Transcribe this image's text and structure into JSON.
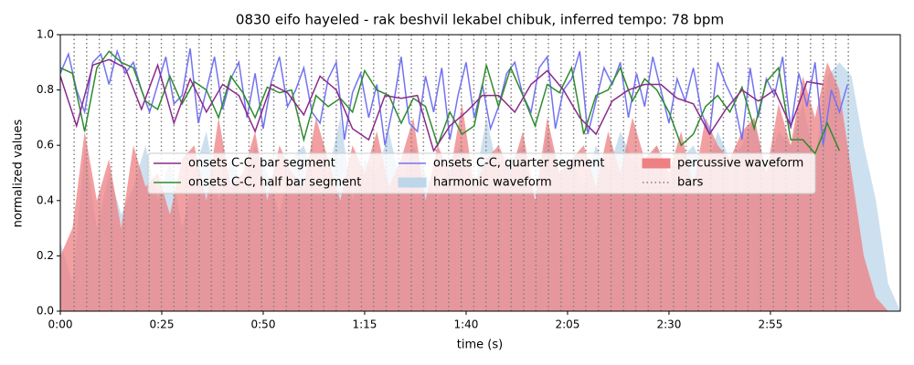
{
  "chart_data": {
    "type": "line",
    "title": "0830 eifo hayeled - rak beshvil lekabel chibuk, inferred tempo: 78 bpm",
    "xlabel": "time (s)",
    "ylabel": "normalized values",
    "xlim": [
      0,
      207
    ],
    "ylim": [
      0,
      1
    ],
    "xticks": [
      {
        "value": 0,
        "label": "0:00"
      },
      {
        "value": 25,
        "label": "0:25"
      },
      {
        "value": 50,
        "label": "0:50"
      },
      {
        "value": 75,
        "label": "1:15"
      },
      {
        "value": 100,
        "label": "1:40"
      },
      {
        "value": 125,
        "label": "2:05"
      },
      {
        "value": 150,
        "label": "2:30"
      },
      {
        "value": 175,
        "label": "2:55"
      }
    ],
    "yticks": [
      {
        "value": 0,
        "label": "0.0"
      },
      0.2,
      0.4,
      0.6,
      0.8,
      {
        "value": 1,
        "label": "1.0"
      }
    ],
    "legend": "center",
    "series": [
      {
        "name": "onsets C-C, bar segment",
        "kind": "line",
        "color": "#8b2a8b",
        "x": [
          0,
          4,
          8,
          12,
          16,
          20,
          24,
          28,
          32,
          36,
          40,
          44,
          48,
          52,
          56,
          60,
          64,
          68,
          72,
          76,
          80,
          84,
          88,
          92,
          96,
          100,
          104,
          108,
          112,
          116,
          120,
          124,
          128,
          132,
          136,
          140,
          144,
          148,
          152,
          156,
          160,
          164,
          168,
          172,
          176,
          180,
          184,
          188
        ],
        "values": [
          0.85,
          0.67,
          0.89,
          0.91,
          0.88,
          0.73,
          0.89,
          0.68,
          0.84,
          0.72,
          0.82,
          0.78,
          0.65,
          0.82,
          0.79,
          0.71,
          0.85,
          0.8,
          0.66,
          0.62,
          0.78,
          0.77,
          0.78,
          0.58,
          0.67,
          0.72,
          0.78,
          0.78,
          0.72,
          0.82,
          0.87,
          0.8,
          0.7,
          0.64,
          0.76,
          0.8,
          0.82,
          0.82,
          0.77,
          0.75,
          0.64,
          0.73,
          0.8,
          0.76,
          0.8,
          0.67,
          0.83,
          0.82
        ]
      },
      {
        "name": "onsets C-C, half bar segment",
        "kind": "line",
        "color": "#2e8b2e",
        "x": [
          0,
          3,
          6,
          9,
          12,
          15,
          18,
          21,
          24,
          27,
          30,
          33,
          36,
          39,
          42,
          45,
          48,
          51,
          54,
          57,
          60,
          63,
          66,
          69,
          72,
          75,
          78,
          81,
          84,
          87,
          90,
          93,
          96,
          99,
          102,
          105,
          108,
          111,
          114,
          117,
          120,
          123,
          126,
          129,
          132,
          135,
          138,
          141,
          144,
          147,
          150,
          153,
          156,
          159,
          162,
          165,
          168,
          171,
          174,
          177,
          180,
          183,
          186,
          189,
          192
        ],
        "values": [
          0.88,
          0.86,
          0.65,
          0.88,
          0.94,
          0.9,
          0.88,
          0.76,
          0.73,
          0.85,
          0.75,
          0.83,
          0.8,
          0.7,
          0.85,
          0.79,
          0.7,
          0.81,
          0.79,
          0.8,
          0.62,
          0.78,
          0.74,
          0.77,
          0.72,
          0.87,
          0.8,
          0.78,
          0.68,
          0.77,
          0.74,
          0.6,
          0.72,
          0.64,
          0.67,
          0.89,
          0.74,
          0.88,
          0.78,
          0.67,
          0.82,
          0.79,
          0.88,
          0.64,
          0.78,
          0.8,
          0.88,
          0.76,
          0.84,
          0.8,
          0.72,
          0.6,
          0.64,
          0.74,
          0.78,
          0.72,
          0.81,
          0.66,
          0.83,
          0.88,
          0.62,
          0.62,
          0.57,
          0.68,
          0.58
        ]
      },
      {
        "name": "onsets C-C, quarter segment",
        "kind": "line",
        "color": "#7373f0",
        "x": [
          0,
          2,
          4,
          6,
          8,
          10,
          12,
          14,
          16,
          18,
          20,
          22,
          24,
          26,
          28,
          30,
          32,
          34,
          36,
          38,
          40,
          42,
          44,
          46,
          48,
          50,
          52,
          54,
          56,
          58,
          60,
          62,
          64,
          66,
          68,
          70,
          72,
          74,
          76,
          78,
          80,
          82,
          84,
          86,
          88,
          90,
          92,
          94,
          96,
          98,
          100,
          102,
          104,
          106,
          108,
          110,
          112,
          114,
          116,
          118,
          120,
          122,
          124,
          126,
          128,
          130,
          132,
          134,
          136,
          138,
          140,
          142,
          144,
          146,
          148,
          150,
          152,
          154,
          156,
          158,
          160,
          162,
          164,
          166,
          168,
          170,
          172,
          174,
          176,
          178,
          180,
          182,
          184,
          186,
          188,
          190,
          192,
          194
        ],
        "values": [
          0.86,
          0.93,
          0.8,
          0.72,
          0.9,
          0.93,
          0.82,
          0.94,
          0.86,
          0.9,
          0.8,
          0.72,
          0.82,
          0.92,
          0.75,
          0.78,
          0.95,
          0.68,
          0.8,
          0.92,
          0.73,
          0.84,
          0.9,
          0.7,
          0.86,
          0.66,
          0.83,
          0.92,
          0.74,
          0.8,
          0.88,
          0.72,
          0.68,
          0.84,
          0.9,
          0.62,
          0.79,
          0.86,
          0.7,
          0.82,
          0.6,
          0.74,
          0.92,
          0.68,
          0.65,
          0.85,
          0.72,
          0.88,
          0.62,
          0.78,
          0.9,
          0.7,
          0.82,
          0.66,
          0.74,
          0.86,
          0.9,
          0.78,
          0.72,
          0.88,
          0.92,
          0.66,
          0.8,
          0.84,
          0.94,
          0.64,
          0.76,
          0.88,
          0.82,
          0.9,
          0.7,
          0.86,
          0.74,
          0.92,
          0.8,
          0.68,
          0.84,
          0.76,
          0.88,
          0.72,
          0.64,
          0.9,
          0.82,
          0.76,
          0.62,
          0.88,
          0.7,
          0.84,
          0.78,
          0.92,
          0.66,
          0.86,
          0.74,
          0.9,
          0.6,
          0.8,
          0.72,
          0.82
        ]
      },
      {
        "name": "harmonic waveform",
        "kind": "area",
        "color": "#bcd6ea",
        "x": [
          0,
          3,
          6,
          9,
          12,
          15,
          18,
          21,
          24,
          27,
          30,
          33,
          36,
          39,
          42,
          45,
          48,
          51,
          54,
          57,
          60,
          63,
          66,
          69,
          72,
          75,
          78,
          81,
          84,
          87,
          90,
          93,
          96,
          99,
          102,
          105,
          108,
          111,
          114,
          117,
          120,
          123,
          126,
          129,
          132,
          135,
          138,
          141,
          144,
          147,
          150,
          153,
          156,
          159,
          162,
          165,
          168,
          171,
          174,
          177,
          180,
          183,
          186,
          189,
          192,
          195,
          198,
          201,
          204,
          207
        ],
        "values": [
          0.25,
          0.1,
          0.6,
          0.3,
          0.5,
          0.35,
          0.45,
          0.6,
          0.4,
          0.55,
          0.3,
          0.5,
          0.65,
          0.4,
          0.55,
          0.45,
          0.6,
          0.5,
          0.35,
          0.55,
          0.6,
          0.45,
          0.5,
          0.7,
          0.4,
          0.55,
          0.5,
          0.65,
          0.45,
          0.6,
          0.5,
          0.4,
          0.55,
          0.6,
          0.45,
          0.7,
          0.5,
          0.55,
          0.6,
          0.4,
          0.65,
          0.5,
          0.55,
          0.45,
          0.6,
          0.5,
          0.65,
          0.55,
          0.5,
          0.6,
          0.45,
          0.55,
          0.6,
          0.5,
          0.65,
          0.55,
          0.6,
          0.7,
          0.5,
          0.65,
          0.6,
          0.75,
          0.55,
          0.85,
          0.9,
          0.85,
          0.6,
          0.4,
          0.1,
          0.0
        ]
      },
      {
        "name": "percussive waveform",
        "kind": "area",
        "color": "#ee7f82",
        "x": [
          0,
          3,
          6,
          9,
          12,
          15,
          18,
          21,
          24,
          27,
          30,
          33,
          36,
          39,
          42,
          45,
          48,
          51,
          54,
          57,
          60,
          63,
          66,
          69,
          72,
          75,
          78,
          81,
          84,
          87,
          90,
          93,
          96,
          99,
          102,
          105,
          108,
          111,
          114,
          117,
          120,
          123,
          126,
          129,
          132,
          135,
          138,
          141,
          144,
          147,
          150,
          153,
          156,
          159,
          162,
          165,
          168,
          171,
          174,
          177,
          180,
          183,
          186,
          189,
          192,
          195,
          198,
          201,
          204,
          207
        ],
        "values": [
          0.2,
          0.3,
          0.65,
          0.4,
          0.55,
          0.3,
          0.6,
          0.45,
          0.5,
          0.35,
          0.55,
          0.6,
          0.4,
          0.7,
          0.45,
          0.5,
          0.65,
          0.4,
          0.6,
          0.5,
          0.45,
          0.7,
          0.55,
          0.4,
          0.6,
          0.5,
          0.65,
          0.45,
          0.55,
          0.7,
          0.4,
          0.6,
          0.5,
          0.75,
          0.45,
          0.55,
          0.6,
          0.5,
          0.65,
          0.4,
          0.7,
          0.5,
          0.55,
          0.6,
          0.45,
          0.65,
          0.5,
          0.7,
          0.55,
          0.6,
          0.5,
          0.65,
          0.45,
          0.7,
          0.6,
          0.55,
          0.65,
          0.7,
          0.5,
          0.75,
          0.6,
          0.85,
          0.7,
          0.9,
          0.8,
          0.5,
          0.2,
          0.05,
          0.0,
          0.0
        ]
      },
      {
        "name": "bars",
        "kind": "vlines",
        "color": "#808080",
        "x": [
          3.4,
          6.5,
          9.6,
          12.6,
          15.7,
          18.8,
          21.9,
          24.9,
          28.0,
          31.1,
          34.2,
          37.2,
          40.3,
          43.4,
          46.5,
          49.6,
          52.6,
          55.7,
          58.8,
          61.9,
          64.9,
          68.0,
          71.1,
          74.2,
          77.2,
          80.3,
          83.4,
          86.5,
          89.5,
          92.6,
          95.7,
          98.8,
          101.9,
          104.9,
          108.0,
          111.1,
          114.2,
          117.2,
          120.3,
          123.4,
          126.5,
          129.5,
          132.6,
          135.7,
          138.8,
          141.8,
          144.9,
          148.0,
          151.1,
          154.2,
          157.2,
          160.3,
          163.4,
          166.5,
          169.5,
          172.6,
          175.7,
          178.8,
          181.8,
          184.9,
          188.0,
          191.1,
          194.2
        ]
      }
    ]
  }
}
